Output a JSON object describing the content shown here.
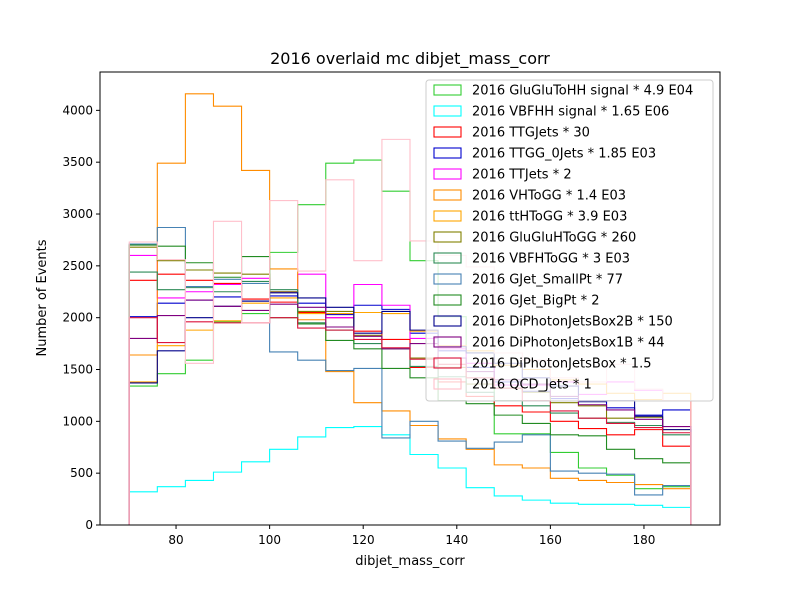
{
  "chart_data": {
    "type": "histogram",
    "title": "2016 overlaid mc dibjet_mass_corr",
    "xlabel": "dibjet_mass_corr",
    "ylabel": "Number of Events",
    "xlim": [
      63.75,
      196.25
    ],
    "ylim": [
      0,
      4370
    ],
    "x_ticks": [
      80,
      100,
      120,
      140,
      160,
      180
    ],
    "y_ticks": [
      0,
      500,
      1000,
      1500,
      2000,
      2500,
      3000,
      3500,
      4000
    ],
    "bin_edges": [
      70,
      76,
      82,
      88,
      94,
      100,
      106,
      112,
      118,
      124,
      130,
      136,
      142,
      148,
      154,
      160,
      166,
      172,
      178,
      184,
      190
    ],
    "legend_position": "upper right",
    "series": [
      {
        "name": "2016 GluGluToHH signal * 4.9 E04",
        "color": "#32cd32",
        "values": [
          1340,
          1460,
          1590,
          1960,
          2040,
          2630,
          3090,
          3490,
          3520,
          3220,
          2550,
          2010,
          1660,
          880,
          880,
          700,
          550,
          480,
          350,
          370
        ]
      },
      {
        "name": "2016 VBFHH signal * 1.65 E06",
        "color": "#00ffff",
        "values": [
          320,
          370,
          430,
          510,
          610,
          730,
          850,
          940,
          950,
          870,
          680,
          550,
          360,
          280,
          240,
          210,
          200,
          200,
          190,
          170
        ]
      },
      {
        "name": "2016 TTGJets * 30",
        "color": "#ff0000",
        "values": [
          2360,
          2420,
          2360,
          2330,
          2180,
          2150,
          2050,
          2000,
          1870,
          1790,
          1520,
          1380,
          1240,
          1150,
          1090,
          1000,
          930,
          870,
          920,
          760
        ]
      },
      {
        "name": "2016 TTGG_0Jets * 1.85 E03",
        "color": "#0000cd",
        "values": [
          2010,
          2140,
          2170,
          2200,
          2160,
          2210,
          2140,
          2030,
          2120,
          2080,
          1850,
          1680,
          1520,
          1380,
          1290,
          1220,
          1200,
          1130,
          1060,
          1110
        ]
      },
      {
        "name": "2016 TTJets * 2",
        "color": "#ff00ff",
        "values": [
          2600,
          2190,
          2250,
          2320,
          2380,
          2250,
          2420,
          2000,
          2320,
          2120,
          1800,
          1700,
          1560,
          1350,
          1350,
          1380,
          1260,
          1380,
          1300,
          1200
        ]
      },
      {
        "name": "2016 VHToGG * 1.4 E03",
        "color": "#ff8c00",
        "values": [
          1640,
          3490,
          4160,
          4040,
          3420,
          2470,
          1980,
          1480,
          1180,
          1100,
          960,
          830,
          730,
          580,
          550,
          450,
          430,
          410,
          390,
          350
        ]
      },
      {
        "name": "2016 ttHToGG * 3.9 E03",
        "color": "#ffa500",
        "values": [
          1380,
          1730,
          1880,
          1970,
          2140,
          2190,
          2040,
          2040,
          2050,
          2040,
          1870,
          1730,
          1680,
          1540,
          1500,
          1400,
          1360,
          1270,
          1210,
          1270
        ]
      },
      {
        "name": "2016 GluGluHToGG * 260",
        "color": "#808000",
        "values": [
          2680,
          2550,
          2460,
          2430,
          2420,
          2250,
          2060,
          2060,
          1830,
          1700,
          1610,
          1520,
          1360,
          1320,
          1280,
          1180,
          1150,
          1030,
          1040,
          920
        ]
      },
      {
        "name": "2016 VBFHToGG * 3 E03",
        "color": "#2e8b57",
        "values": [
          2440,
          2270,
          2290,
          2250,
          2350,
          2270,
          1950,
          1880,
          1750,
          1700,
          1530,
          1430,
          1280,
          1200,
          1150,
          1080,
          1030,
          990,
          960,
          870
        ]
      },
      {
        "name": "2016 GJet_SmallPt * 77",
        "color": "#4682b4",
        "values": [
          2710,
          2870,
          2300,
          2370,
          2330,
          1670,
          1590,
          1490,
          1510,
          840,
          1000,
          810,
          740,
          800,
          870,
          520,
          500,
          490,
          290,
          380
        ]
      },
      {
        "name": "2016 GJet_BigPt * 2",
        "color": "#228b22",
        "values": [
          2700,
          2690,
          2530,
          2390,
          2590,
          2000,
          1940,
          1780,
          1700,
          1510,
          1420,
          1200,
          1170,
          1060,
          980,
          870,
          860,
          730,
          640,
          600
        ]
      },
      {
        "name": "2016 DiPhotonJetsBox2B * 150",
        "color": "#00008b",
        "values": [
          1370,
          1680,
          2000,
          2110,
          2160,
          2240,
          2190,
          2100,
          1850,
          2060,
          1880,
          1720,
          1660,
          1560,
          1420,
          1340,
          1190,
          1200,
          1050,
          920
        ]
      },
      {
        "name": "2016 DiPhotonJetsBox1B * 44",
        "color": "#800080",
        "values": [
          1800,
          2020,
          2170,
          2110,
          2070,
          2130,
          2100,
          1910,
          1820,
          1700,
          1750,
          1610,
          1480,
          1400,
          1360,
          1240,
          1160,
          1110,
          1020,
          950
        ]
      },
      {
        "name": "2016 DiPhotonJetsBox * 1.5",
        "color": "#dc143c",
        "values": [
          2000,
          1760,
          1960,
          1950,
          1950,
          2000,
          1900,
          1880,
          1790,
          1710,
          1600,
          1550,
          1420,
          1320,
          1200,
          1100,
          1030,
          980,
          940,
          890
        ]
      },
      {
        "name": "2016 QCD_Jets * 1",
        "color": "#ffc0cb",
        "values": [
          2730,
          2560,
          1560,
          2930,
          1950,
          3130,
          2450,
          3330,
          2550,
          3720,
          2740,
          2600,
          2490,
          1660,
          1590,
          1420,
          1380,
          1550,
          1310,
          1200
        ]
      }
    ]
  }
}
